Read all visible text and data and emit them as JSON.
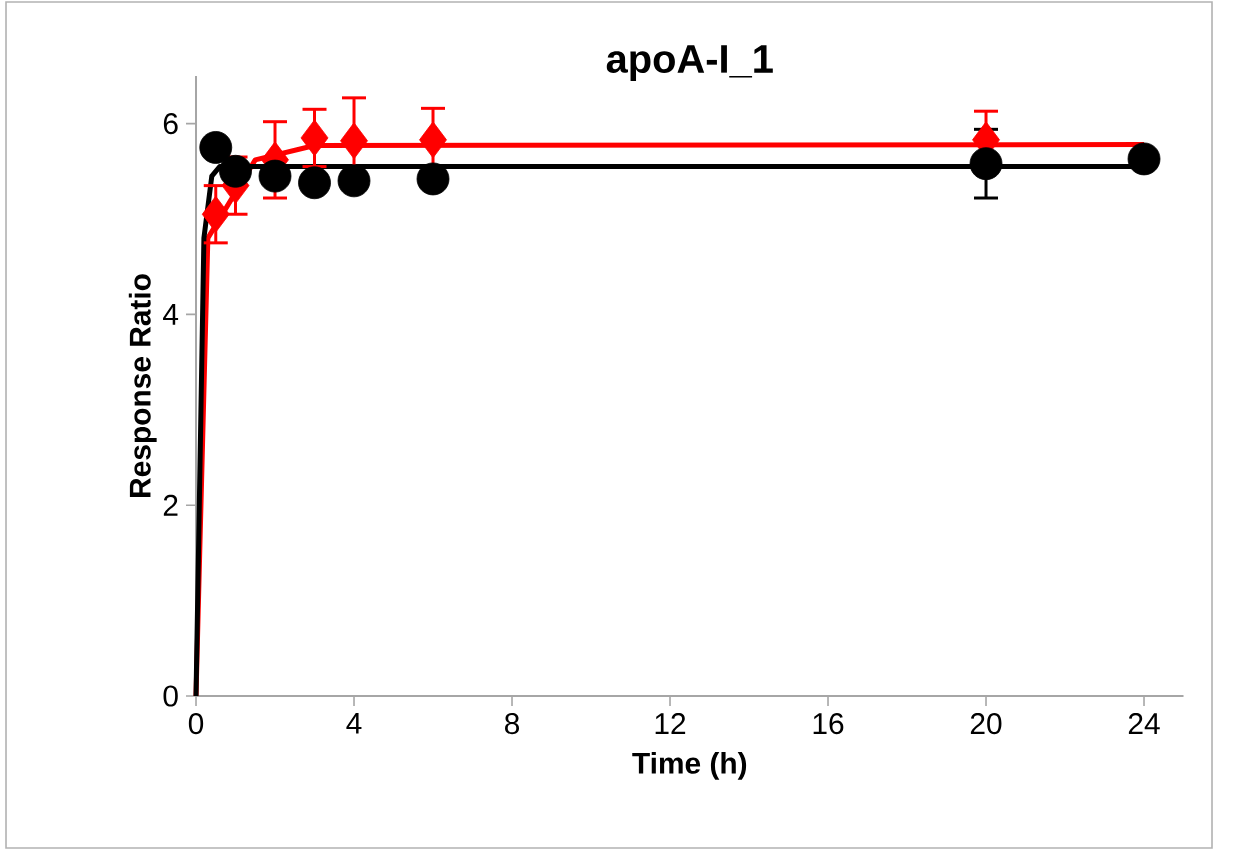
{
  "chart_data": {
    "type": "scatter",
    "title": "apoA-I_1",
    "xlabel": "Time (h)",
    "ylabel": "Response Ratio",
    "xlim": [
      0,
      25
    ],
    "ylim": [
      0,
      6.5
    ],
    "xticks": [
      0,
      4,
      8,
      12,
      16,
      20,
      24
    ],
    "yticks": [
      0,
      2,
      4,
      6
    ],
    "grid": false,
    "series": [
      {
        "type": "line",
        "color": "#ff0000",
        "marker": "none",
        "x": [
          0,
          0.3,
          1.5,
          3,
          24
        ],
        "values": [
          0,
          4.8,
          5.62,
          5.77,
          5.78
        ]
      },
      {
        "type": "line",
        "color": "#000000",
        "marker": "none",
        "x": [
          0,
          0.2,
          0.4,
          0.6,
          24
        ],
        "values": [
          0,
          4.8,
          5.45,
          5.55,
          5.55
        ]
      },
      {
        "color": "#ff0000",
        "marker": "diamond",
        "x": [
          0.5,
          1,
          2,
          3,
          4,
          6,
          20
        ],
        "values": [
          5.05,
          5.35,
          5.62,
          5.85,
          5.82,
          5.83,
          5.83
        ],
        "errors": [
          0.3,
          0.3,
          0.4,
          0.3,
          0.45,
          0.33,
          0.3
        ]
      },
      {
        "color": "#000000",
        "marker": "circle",
        "x": [
          0.5,
          1,
          2,
          3,
          4,
          6,
          20,
          24
        ],
        "values": [
          5.75,
          5.5,
          5.45,
          5.38,
          5.4,
          5.42,
          5.58,
          5.63
        ],
        "errors": [
          null,
          null,
          null,
          null,
          null,
          null,
          0.36,
          null
        ]
      }
    ]
  }
}
